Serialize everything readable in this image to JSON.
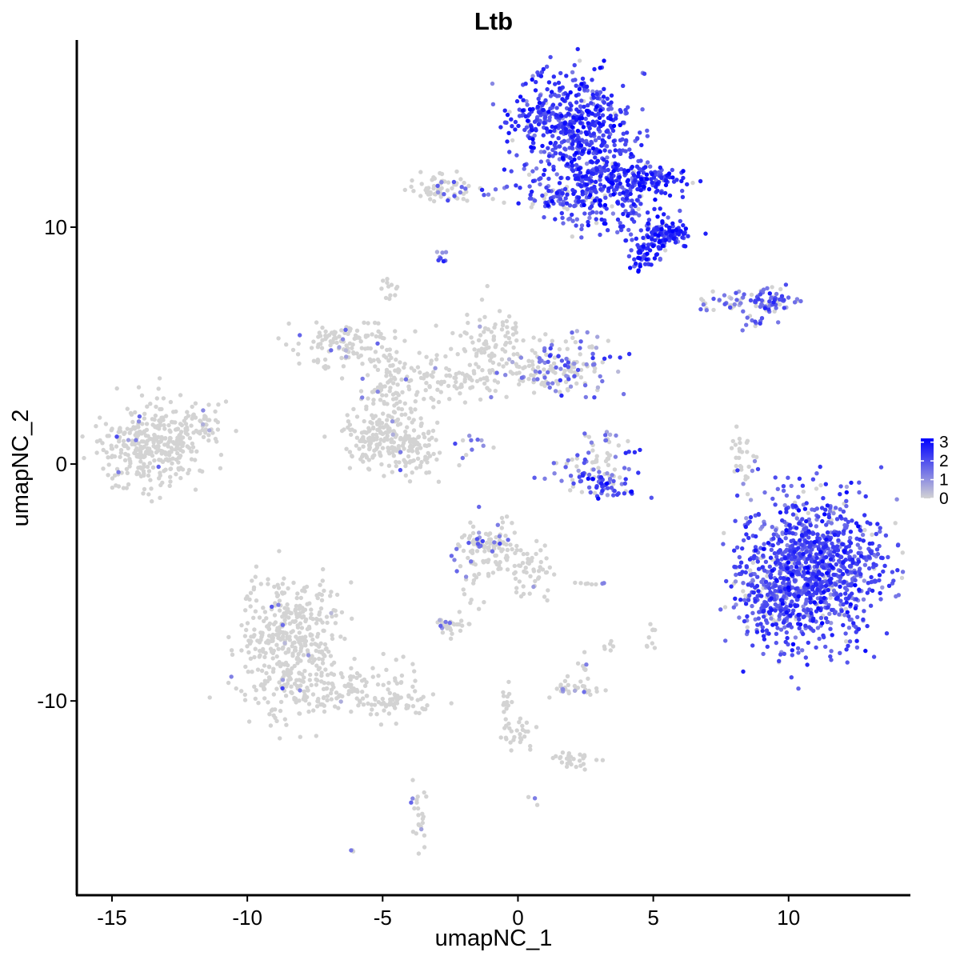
{
  "chart_data": {
    "type": "scatter",
    "title": "Ltb",
    "xlabel": "umapNC_1",
    "ylabel": "umapNC_2",
    "xlim": [
      -16.3,
      14.5
    ],
    "ylim": [
      -18.2,
      17.9
    ],
    "x_ticks": [
      -15,
      -10,
      -5,
      0,
      5,
      10
    ],
    "x_tick_labels": [
      "-15",
      "-10",
      "-5",
      "0",
      "5",
      "10"
    ],
    "y_ticks": [
      -10,
      0,
      10
    ],
    "y_tick_labels": [
      "-10",
      "0",
      "10"
    ],
    "grid": false,
    "legend_position": "right",
    "color_scale": {
      "low": "#d3d3d3",
      "high": "#0000ff",
      "ticks": [
        0,
        1,
        2,
        3
      ],
      "tick_labels": [
        "0",
        "1",
        "2",
        "3"
      ],
      "max": 3.2
    },
    "clusters": [
      {
        "cx": -13.6,
        "cy": 0.8,
        "sx": 1.0,
        "sy": 0.9,
        "n": 340,
        "expr": 0.02,
        "mean": 1.2
      },
      {
        "cx": -11.9,
        "cy": 1.6,
        "sx": 0.5,
        "sy": 0.5,
        "n": 50,
        "expr": 0.05,
        "mean": 1.2
      },
      {
        "cx": -8.4,
        "cy": -7.6,
        "sx": 0.9,
        "sy": 1.5,
        "n": 430,
        "expr": 0.02,
        "mean": 1.3
      },
      {
        "cx": -6.3,
        "cy": -9.5,
        "sx": 1.3,
        "sy": 0.5,
        "n": 120,
        "expr": 0.01,
        "mean": 1.0
      },
      {
        "cx": -4.6,
        "cy": -10.2,
        "sx": 0.6,
        "sy": 0.3,
        "n": 50,
        "expr": 0.0,
        "mean": 1.0
      },
      {
        "cx": -6.3,
        "cy": 5.1,
        "sx": 1.0,
        "sy": 0.5,
        "n": 120,
        "expr": 0.08,
        "mean": 1.3
      },
      {
        "cx": -4.8,
        "cy": 4.0,
        "sx": 0.6,
        "sy": 0.5,
        "n": 40,
        "expr": 0.1,
        "mean": 1.3
      },
      {
        "cx": -5.3,
        "cy": 1.0,
        "sx": 0.6,
        "sy": 0.6,
        "n": 120,
        "expr": 0.02,
        "mean": 1.2
      },
      {
        "cx": -4.0,
        "cy": 0.7,
        "sx": 0.6,
        "sy": 0.7,
        "n": 110,
        "expr": 0.02,
        "mean": 1.2
      },
      {
        "cx": -4.6,
        "cy": 2.5,
        "sx": 0.5,
        "sy": 0.9,
        "n": 70,
        "expr": 0.04,
        "mean": 1.2
      },
      {
        "cx": -2.2,
        "cy": 3.5,
        "sx": 1.0,
        "sy": 0.5,
        "n": 90,
        "expr": 0.04,
        "mean": 1.3
      },
      {
        "cx": -0.8,
        "cy": 5.2,
        "sx": 0.8,
        "sy": 0.7,
        "n": 90,
        "expr": 0.03,
        "mean": 1.2
      },
      {
        "cx": 2.0,
        "cy": 4.2,
        "sx": 0.7,
        "sy": 0.6,
        "n": 120,
        "expr": 0.5,
        "mean": 1.5
      },
      {
        "cx": 0.4,
        "cy": 3.9,
        "sx": 0.6,
        "sy": 0.4,
        "n": 40,
        "expr": 0.2,
        "mean": 1.3
      },
      {
        "cx": -1.6,
        "cy": 0.8,
        "sx": 0.3,
        "sy": 0.3,
        "n": 12,
        "expr": 0.6,
        "mean": 1.6
      },
      {
        "cx": -3.0,
        "cy": 11.6,
        "sx": 0.5,
        "sy": 0.3,
        "n": 60,
        "expr": 0.05,
        "mean": 1.2
      },
      {
        "cx": -1.6,
        "cy": 11.4,
        "sx": 0.6,
        "sy": 0.2,
        "n": 20,
        "expr": 0.6,
        "mean": 1.6
      },
      {
        "cx": -2.9,
        "cy": 8.8,
        "sx": 0.2,
        "sy": 0.2,
        "n": 8,
        "expr": 0.8,
        "mean": 1.5
      },
      {
        "cx": -4.7,
        "cy": 7.4,
        "sx": 0.2,
        "sy": 0.3,
        "n": 12,
        "expr": 0.1,
        "mean": 1.2
      },
      {
        "cx": 1.9,
        "cy": 14.3,
        "sx": 1.1,
        "sy": 1.1,
        "n": 520,
        "expr": 0.97,
        "mean": 2.2
      },
      {
        "cx": 3.3,
        "cy": 12.0,
        "sx": 0.8,
        "sy": 0.7,
        "n": 210,
        "expr": 0.95,
        "mean": 2.3
      },
      {
        "cx": 5.0,
        "cy": 12.0,
        "sx": 0.6,
        "sy": 0.3,
        "n": 90,
        "expr": 0.95,
        "mean": 2.4
      },
      {
        "cx": 5.5,
        "cy": 9.7,
        "sx": 0.4,
        "sy": 0.3,
        "n": 110,
        "expr": 0.95,
        "mean": 2.4
      },
      {
        "cx": 4.6,
        "cy": 8.8,
        "sx": 0.3,
        "sy": 0.3,
        "n": 50,
        "expr": 0.95,
        "mean": 2.4
      },
      {
        "cx": 4.2,
        "cy": 10.6,
        "sx": 0.6,
        "sy": 0.6,
        "n": 60,
        "expr": 0.9,
        "mean": 2.2
      },
      {
        "cx": 1.2,
        "cy": 11.3,
        "sx": 0.7,
        "sy": 0.3,
        "n": 60,
        "expr": 0.85,
        "mean": 2.0
      },
      {
        "cx": 2.5,
        "cy": 10.8,
        "sx": 0.6,
        "sy": 0.5,
        "n": 40,
        "expr": 0.7,
        "mean": 1.9
      },
      {
        "cx": 7.8,
        "cy": 6.9,
        "sx": 0.6,
        "sy": 0.2,
        "n": 40,
        "expr": 0.5,
        "mean": 1.5
      },
      {
        "cx": 9.4,
        "cy": 6.9,
        "sx": 0.4,
        "sy": 0.25,
        "n": 60,
        "expr": 0.7,
        "mean": 1.8
      },
      {
        "cx": 8.8,
        "cy": 6.0,
        "sx": 0.3,
        "sy": 0.2,
        "n": 12,
        "expr": 0.7,
        "mean": 1.6
      },
      {
        "cx": 8.3,
        "cy": 0.3,
        "sx": 0.2,
        "sy": 0.8,
        "n": 30,
        "expr": 0.15,
        "mean": 1.3
      },
      {
        "cx": 3.3,
        "cy": -0.8,
        "sx": 0.6,
        "sy": 0.3,
        "n": 60,
        "expr": 0.8,
        "mean": 2.0
      },
      {
        "cx": 2.2,
        "cy": -0.3,
        "sx": 0.6,
        "sy": 0.3,
        "n": 30,
        "expr": 0.7,
        "mean": 1.8
      },
      {
        "cx": 3.3,
        "cy": 0.3,
        "sx": 0.4,
        "sy": 0.4,
        "n": 30,
        "expr": 0.5,
        "mean": 1.6
      },
      {
        "cx": 2.9,
        "cy": 1.0,
        "sx": 0.3,
        "sy": 0.3,
        "n": 10,
        "expr": 0.5,
        "mean": 1.6
      },
      {
        "cx": 10.8,
        "cy": -4.5,
        "sx": 1.3,
        "sy": 1.5,
        "n": 1100,
        "expr": 0.93,
        "mean": 2.0
      },
      {
        "cx": 9.5,
        "cy": -6.2,
        "sx": 0.6,
        "sy": 0.6,
        "n": 80,
        "expr": 0.9,
        "mean": 2.0
      },
      {
        "cx": 8.6,
        "cy": -5.0,
        "sx": 0.3,
        "sy": 0.5,
        "n": 20,
        "expr": 0.8,
        "mean": 1.8
      },
      {
        "cx": -1.1,
        "cy": -3.7,
        "sx": 0.6,
        "sy": 0.5,
        "n": 90,
        "expr": 0.1,
        "mean": 1.4
      },
      {
        "cx": 0.5,
        "cy": -4.6,
        "sx": 0.4,
        "sy": 0.5,
        "n": 50,
        "expr": 0.08,
        "mean": 1.3
      },
      {
        "cx": -2.5,
        "cy": -6.8,
        "sx": 0.3,
        "sy": 0.2,
        "n": 30,
        "expr": 0.15,
        "mean": 1.3
      },
      {
        "cx": -1.7,
        "cy": -5.0,
        "sx": 0.3,
        "sy": 0.6,
        "n": 14,
        "expr": 0.1,
        "mean": 1.2
      },
      {
        "cx": -1.5,
        "cy": -3.2,
        "sx": 0.3,
        "sy": 0.3,
        "n": 14,
        "expr": 0.4,
        "mean": 1.6
      },
      {
        "cx": -0.4,
        "cy": -2.9,
        "sx": 0.4,
        "sy": 0.3,
        "n": 10,
        "expr": 0.5,
        "mean": 1.7
      },
      {
        "cx": 2.6,
        "cy": -5.1,
        "sx": 0.3,
        "sy": 0.1,
        "n": 8,
        "expr": 0.2,
        "mean": 1.3
      },
      {
        "cx": 2.0,
        "cy": -9.5,
        "sx": 0.5,
        "sy": 0.2,
        "n": 30,
        "expr": 0.2,
        "mean": 1.4
      },
      {
        "cx": 2.5,
        "cy": -8.6,
        "sx": 0.1,
        "sy": 0.2,
        "n": 8,
        "expr": 0.4,
        "mean": 1.4
      },
      {
        "cx": 2.1,
        "cy": -12.5,
        "sx": 0.4,
        "sy": 0.2,
        "n": 30,
        "expr": 0.0,
        "mean": 1.0
      },
      {
        "cx": 0.0,
        "cy": -11.3,
        "sx": 0.3,
        "sy": 0.5,
        "n": 30,
        "expr": 0.0,
        "mean": 1.0
      },
      {
        "cx": -0.4,
        "cy": -9.9,
        "sx": 0.1,
        "sy": 0.5,
        "n": 12,
        "expr": 0.0,
        "mean": 1.0
      },
      {
        "cx": 5.0,
        "cy": -7.4,
        "sx": 0.1,
        "sy": 0.3,
        "n": 10,
        "expr": 0.0,
        "mean": 1.0
      },
      {
        "cx": 3.4,
        "cy": -7.6,
        "sx": 0.1,
        "sy": 0.2,
        "n": 6,
        "expr": 0.0,
        "mean": 1.0
      },
      {
        "cx": -3.6,
        "cy": -14.8,
        "sx": 0.2,
        "sy": 0.6,
        "n": 24,
        "expr": 0.15,
        "mean": 1.3
      },
      {
        "cx": -6.1,
        "cy": -16.3,
        "sx": 0.05,
        "sy": 0.05,
        "n": 3,
        "expr": 0.3,
        "mean": 1.2
      },
      {
        "cx": 0.6,
        "cy": -14.2,
        "sx": 0.1,
        "sy": 0.1,
        "n": 3,
        "expr": 0.5,
        "mean": 1.3
      }
    ]
  }
}
